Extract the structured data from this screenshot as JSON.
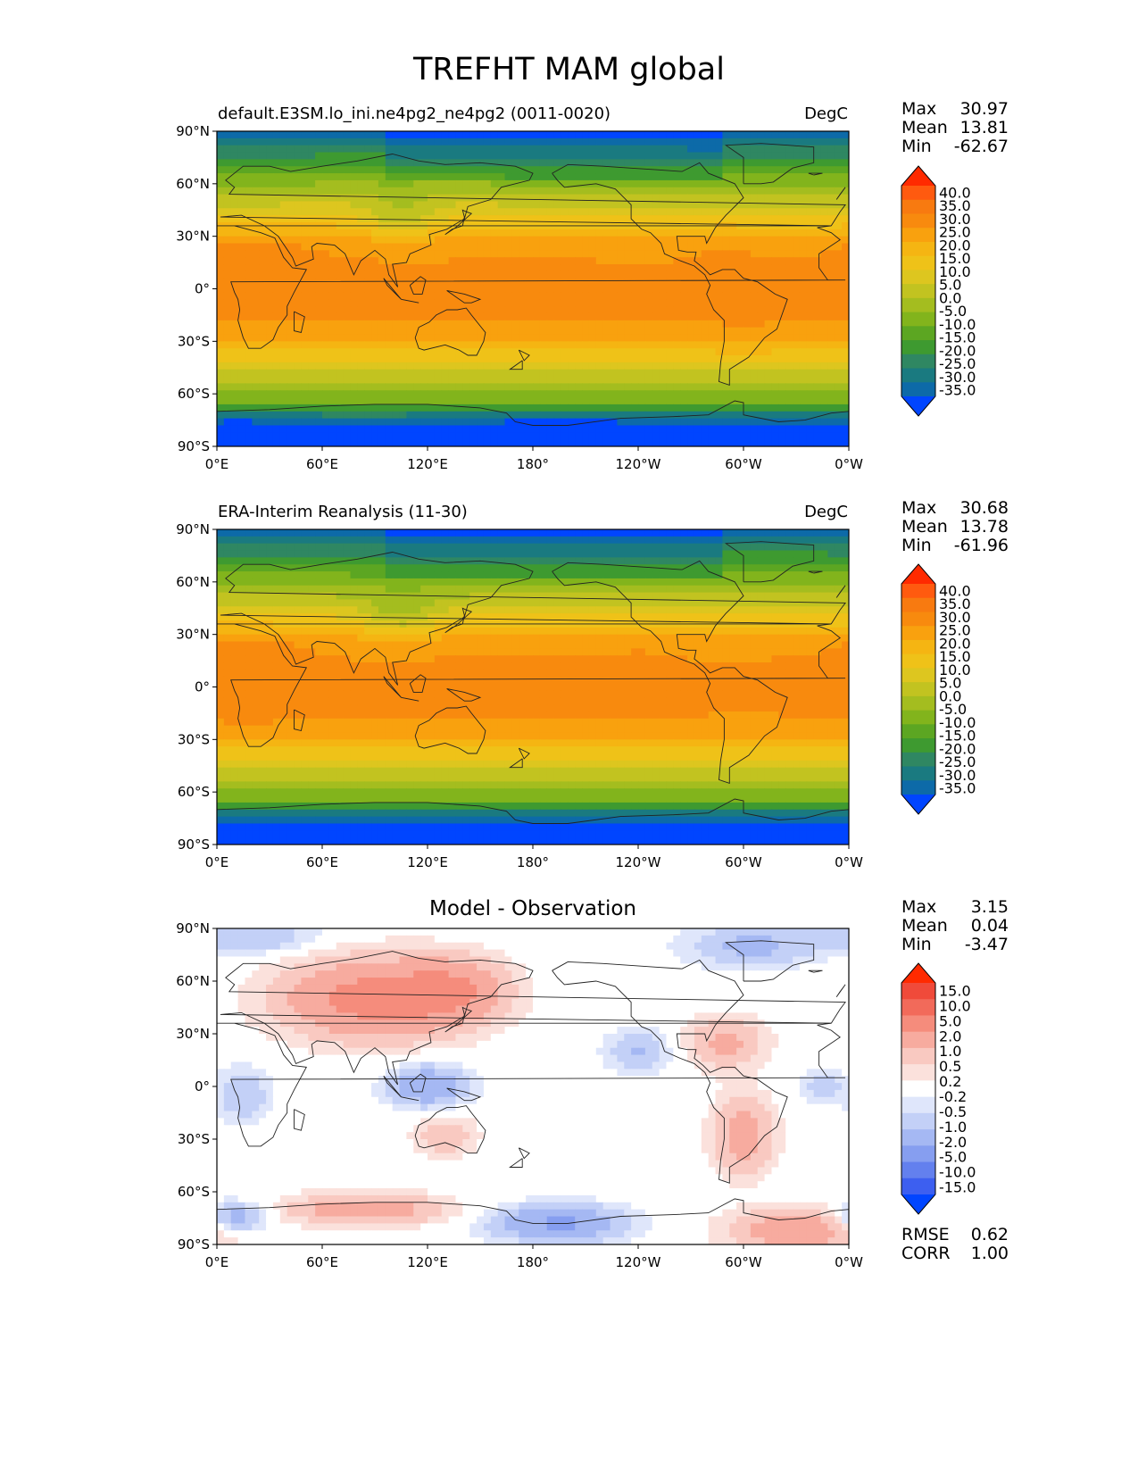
{
  "figure": {
    "title": "TREFHT MAM global"
  },
  "chart_data": [
    {
      "type": "heatmap",
      "subtitle_left": "default.E3SM.lo_ini.ne4pg2_ne4pg2 (0011-0020)",
      "subtitle_right": "DegC",
      "x_tick_labels": [
        "0°E",
        "60°E",
        "120°E",
        "180°",
        "120°W",
        "60°W",
        "0°W"
      ],
      "y_tick_labels": [
        "90°N",
        "60°N",
        "30°N",
        "0°",
        "30°S",
        "60°S",
        "90°S"
      ],
      "xlim": [
        0,
        360
      ],
      "ylim": [
        -90,
        90
      ],
      "stats": {
        "max_label": "Max",
        "max": "30.97",
        "mean_label": "Mean",
        "mean": "13.81",
        "min_label": "Min",
        "min": "-62.67"
      },
      "colorbar": {
        "labels": [
          "40.0",
          "35.0",
          "30.0",
          "25.0",
          "20.0",
          "15.0",
          "10.0",
          "5.0",
          "0.0",
          "-5.0",
          "-10.0",
          "-15.0",
          "-20.0",
          "-25.0",
          "-30.0",
          "-35.0"
        ],
        "colors": [
          "#ff2a00",
          "#ff5a0f",
          "#f87a10",
          "#f88a0e",
          "#f9a10e",
          "#f5b512",
          "#efc218",
          "#ddc61f",
          "#c2c320",
          "#a4bd1f",
          "#82b41c",
          "#5ca622",
          "#3e9a30",
          "#2f8762",
          "#1a7a80",
          "#0d6aa8",
          "#0045ff"
        ]
      },
      "field": "model"
    },
    {
      "type": "heatmap",
      "subtitle_left": "ERA-Interim Reanalysis (11-30)",
      "subtitle_right": "DegC",
      "x_tick_labels": [
        "0°E",
        "60°E",
        "120°E",
        "180°",
        "120°W",
        "60°W",
        "0°W"
      ],
      "y_tick_labels": [
        "90°N",
        "60°N",
        "30°N",
        "0°",
        "30°S",
        "60°S",
        "90°S"
      ],
      "xlim": [
        0,
        360
      ],
      "ylim": [
        -90,
        90
      ],
      "stats": {
        "max_label": "Max",
        "max": "30.68",
        "mean_label": "Mean",
        "mean": "13.78",
        "min_label": "Min",
        "min": "-61.96"
      },
      "colorbar": {
        "labels": [
          "40.0",
          "35.0",
          "30.0",
          "25.0",
          "20.0",
          "15.0",
          "10.0",
          "5.0",
          "0.0",
          "-5.0",
          "-10.0",
          "-15.0",
          "-20.0",
          "-25.0",
          "-30.0",
          "-35.0"
        ],
        "colors": [
          "#ff2a00",
          "#ff5a0f",
          "#f87a10",
          "#f88a0e",
          "#f9a10e",
          "#f5b512",
          "#efc218",
          "#ddc61f",
          "#c2c320",
          "#a4bd1f",
          "#82b41c",
          "#5ca622",
          "#3e9a30",
          "#2f8762",
          "#1a7a80",
          "#0d6aa8",
          "#0045ff"
        ]
      },
      "field": "obs"
    },
    {
      "type": "heatmap",
      "title": "Model - Observation",
      "x_tick_labels": [
        "0°E",
        "60°E",
        "120°E",
        "180°",
        "120°W",
        "60°W",
        "0°W"
      ],
      "y_tick_labels": [
        "90°N",
        "60°N",
        "30°N",
        "0°",
        "30°S",
        "60°S",
        "90°S"
      ],
      "xlim": [
        0,
        360
      ],
      "ylim": [
        -90,
        90
      ],
      "stats": {
        "max_label": "Max",
        "max": "3.15",
        "mean_label": "Mean",
        "mean": "0.04",
        "min_label": "Min",
        "min": "-3.47"
      },
      "colorbar": {
        "labels": [
          "15.0",
          "10.0",
          "5.0",
          "2.0",
          "1.0",
          "0.5",
          "0.2",
          "-0.2",
          "-0.5",
          "-1.0",
          "-2.0",
          "-5.0",
          "-10.0",
          "-15.0"
        ],
        "colors": [
          "#ff2a00",
          "#f04a3a",
          "#f26a5a",
          "#f58c7c",
          "#f7ab9f",
          "#f9c9c1",
          "#fbe1dc",
          "#ffffff",
          "#dfe6fb",
          "#c3d0f7",
          "#a5b8f3",
          "#869ef0",
          "#6380ee",
          "#3d5ff0",
          "#0045ff"
        ]
      },
      "extra_stats": {
        "rmse_label": "RMSE",
        "rmse": "0.62",
        "corr_label": "CORR",
        "corr": "1.00"
      },
      "field": "diff"
    }
  ]
}
